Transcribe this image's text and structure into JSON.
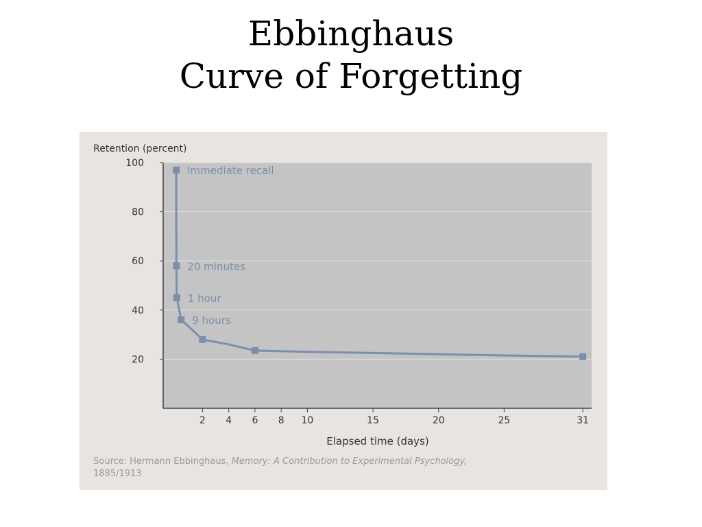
{
  "slide": {
    "title_line1": "Ebbinghaus",
    "title_line2": "Curve of Forgetting"
  },
  "colors": {
    "panel_bg": "#e8e4e2",
    "plot_bg": "#c4c4c4",
    "series": "#7b8eac",
    "axis": "#444444",
    "source_text": "#9a9a9a"
  },
  "chart_data": {
    "type": "line",
    "title": "",
    "ylabel": "Retention (percent)",
    "xlabel": "Elapsed time (days)",
    "xlim": [
      -1,
      31
    ],
    "ylim": [
      0,
      100
    ],
    "x_ticks": [
      2,
      4,
      6,
      8,
      10,
      15,
      20,
      25,
      31
    ],
    "y_ticks": [
      20,
      40,
      60,
      80,
      100
    ],
    "grid": "horizontal",
    "series": [
      {
        "line_points": [
          {
            "x": 0,
            "y": 97
          },
          {
            "x": 0,
            "y": 74
          },
          {
            "x": 0.01,
            "y": 58
          },
          {
            "x": 0.04,
            "y": 45
          },
          {
            "x": 0.37,
            "y": 36
          },
          {
            "x": 1,
            "y": 33
          },
          {
            "x": 2,
            "y": 28
          },
          {
            "x": 4,
            "y": 26
          },
          {
            "x": 6,
            "y": 23.5
          },
          {
            "x": 10,
            "y": 23
          },
          {
            "x": 15,
            "y": 22.5
          },
          {
            "x": 20,
            "y": 22
          },
          {
            "x": 25,
            "y": 21.5
          },
          {
            "x": 31,
            "y": 21
          }
        ],
        "markers": [
          {
            "x": 0,
            "y": 97,
            "label": "Immediate recall"
          },
          {
            "x": 0.01,
            "y": 58,
            "label": "20 minutes"
          },
          {
            "x": 0.04,
            "y": 45,
            "label": "1 hour"
          },
          {
            "x": 0.37,
            "y": 36,
            "label": "9 hours"
          },
          {
            "x": 2,
            "y": 28,
            "label": ""
          },
          {
            "x": 6,
            "y": 23.5,
            "label": ""
          },
          {
            "x": 31,
            "y": 21,
            "label": ""
          }
        ]
      }
    ],
    "source": {
      "prefix": "Source: Hermann Ebbinghaus, ",
      "book": "Memory: A Contribution to Experimental Psychology,",
      "years": "1885/1913"
    }
  }
}
